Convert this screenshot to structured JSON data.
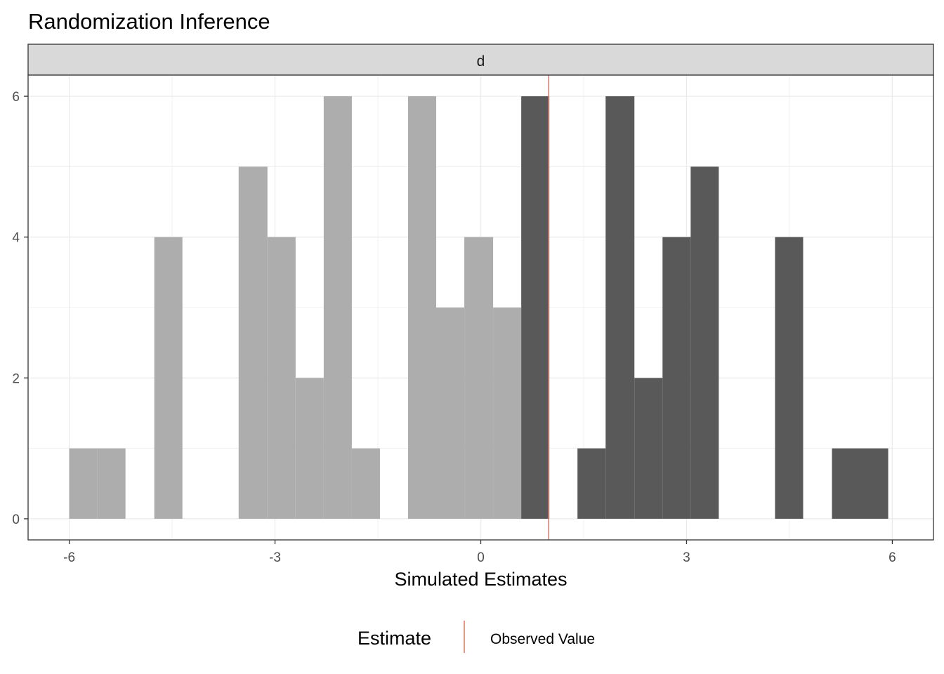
{
  "chart_data": {
    "type": "bar",
    "title": "Randomization Inference",
    "facet_label": "d",
    "xlabel": "Simulated Estimates",
    "ylabel": "",
    "xlim": [
      -6.6,
      6.6
    ],
    "ylim": [
      -0.3,
      6.3
    ],
    "x_ticks": [
      -6,
      -3,
      0,
      3,
      6
    ],
    "x_tick_labels": [
      "-6",
      "-3",
      "0",
      "3",
      "6"
    ],
    "y_ticks": [
      0,
      2,
      4,
      6
    ],
    "y_tick_labels": [
      "0",
      "2",
      "4",
      "6"
    ],
    "grid": true,
    "observed_value": 0.99,
    "bins": [
      {
        "x0": -6.0,
        "x1": -5.59,
        "count": 1,
        "extreme": false
      },
      {
        "x0": -5.59,
        "x1": -5.18,
        "count": 1,
        "extreme": false
      },
      {
        "x0": -4.76,
        "x1": -4.35,
        "count": 4,
        "extreme": false
      },
      {
        "x0": -3.53,
        "x1": -3.11,
        "count": 5,
        "extreme": false
      },
      {
        "x0": -3.11,
        "x1": -2.7,
        "count": 4,
        "extreme": false
      },
      {
        "x0": -2.7,
        "x1": -2.29,
        "count": 2,
        "extreme": false
      },
      {
        "x0": -2.29,
        "x1": -1.88,
        "count": 6,
        "extreme": false
      },
      {
        "x0": -1.88,
        "x1": -1.47,
        "count": 1,
        "extreme": false
      },
      {
        "x0": -1.06,
        "x1": -0.65,
        "count": 6,
        "extreme": false
      },
      {
        "x0": -0.65,
        "x1": -0.24,
        "count": 3,
        "extreme": false
      },
      {
        "x0": -0.24,
        "x1": 0.18,
        "count": 4,
        "extreme": false
      },
      {
        "x0": 0.18,
        "x1": 0.59,
        "count": 3,
        "extreme": false
      },
      {
        "x0": 0.59,
        "x1": 1.0,
        "count": 6,
        "extreme": true
      },
      {
        "x0": 1.41,
        "x1": 1.82,
        "count": 1,
        "extreme": true
      },
      {
        "x0": 1.82,
        "x1": 2.24,
        "count": 6,
        "extreme": true
      },
      {
        "x0": 2.24,
        "x1": 2.65,
        "count": 2,
        "extreme": true
      },
      {
        "x0": 2.65,
        "x1": 3.06,
        "count": 4,
        "extreme": true
      },
      {
        "x0": 3.06,
        "x1": 3.47,
        "count": 5,
        "extreme": true
      },
      {
        "x0": 4.29,
        "x1": 4.7,
        "count": 4,
        "extreme": true
      },
      {
        "x0": 5.12,
        "x1": 5.53,
        "count": 1,
        "extreme": true
      },
      {
        "x0": 5.53,
        "x1": 5.94,
        "count": 1,
        "extreme": true
      }
    ],
    "legend": {
      "title": "Estimate",
      "entries": [
        {
          "label": "Observed Value",
          "color": "#e8796b"
        }
      ],
      "placement": "bottom"
    },
    "colors": {
      "non_extreme_bar": "#adadad",
      "extreme_bar": "#595959",
      "observed_line": "#e8796b",
      "strip_fill": "#d9d9d9",
      "grid": "#ebebeb",
      "panel_border": "#333333"
    }
  }
}
